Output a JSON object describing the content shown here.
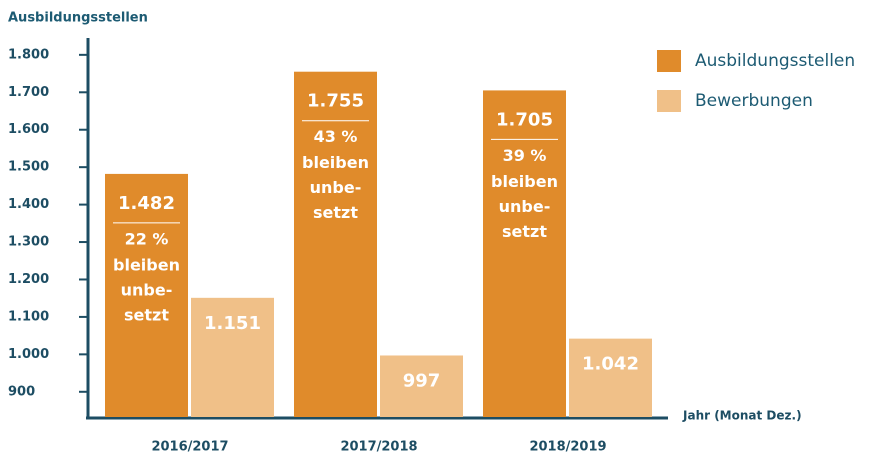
{
  "chart_data": {
    "type": "bar",
    "y_axis_title": "Ausbildungsstellen",
    "x_axis_title": "Jahr (Monat Dez.)",
    "categories": [
      "2016/2017",
      "2017/2018",
      "2018/2019"
    ],
    "series": [
      {
        "name": "Ausbildungsstellen",
        "color": "#e08b2b",
        "values": [
          1482,
          1755,
          1705
        ],
        "value_labels": [
          "1.482",
          "1.755",
          "1.705"
        ]
      },
      {
        "name": "Bewerbungen",
        "color": "#f0c088",
        "values": [
          1151,
          997,
          1042
        ],
        "value_labels": [
          "1.151",
          "997",
          "1.042"
        ]
      }
    ],
    "annotations": [
      {
        "percent": "22 %",
        "lines": [
          "bleiben",
          "unbe-",
          "setzt"
        ]
      },
      {
        "percent": "43 %",
        "lines": [
          "bleiben",
          "unbe-",
          "setzt"
        ]
      },
      {
        "percent": "39 %",
        "lines": [
          "bleiben",
          "unbe-",
          "setzt"
        ]
      }
    ],
    "ylim": [
      830,
      1845
    ],
    "yticks": [
      900,
      {
        "value": 1000,
        "label": "1.000"
      },
      {
        "value": 1100,
        "label": "1.100"
      },
      {
        "value": 1200,
        "label": "1.200"
      },
      {
        "value": 1300,
        "label": "1.300"
      },
      {
        "value": 1400,
        "label": "1.400"
      },
      {
        "value": 1500,
        "label": "1.500"
      },
      {
        "value": 1600,
        "label": "1.600"
      },
      {
        "value": 1700,
        "label": "1.700"
      },
      {
        "value": 1800,
        "label": "1.800"
      }
    ],
    "legend": "top-right"
  }
}
